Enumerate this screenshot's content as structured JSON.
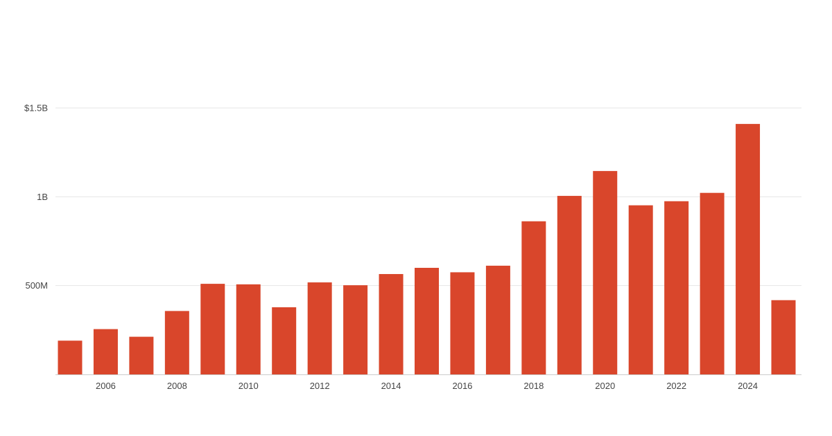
{
  "chart_data": {
    "type": "bar",
    "title": "",
    "xlabel": "",
    "ylabel": "",
    "x": [
      2005,
      2006,
      2007,
      2008,
      2009,
      2010,
      2011,
      2012,
      2013,
      2014,
      2015,
      2016,
      2017,
      2018,
      2019,
      2020,
      2021,
      2022,
      2023,
      2024,
      2025
    ],
    "values": [
      190000000,
      255000000,
      212000000,
      357000000,
      510000000,
      507000000,
      378000000,
      518000000,
      502000000,
      565000000,
      600000000,
      575000000,
      612000000,
      862000000,
      1005000000,
      1145000000,
      952000000,
      975000000,
      1022000000,
      1410000000,
      418000000
    ],
    "ylim": [
      0,
      1500000000
    ],
    "y_ticks": [
      {
        "value": 500000000,
        "label": "500M"
      },
      {
        "value": 1000000000,
        "label": "1B"
      },
      {
        "value": 1500000000,
        "label": "$1.5B"
      }
    ],
    "x_tick_labels": [
      "2006",
      "2008",
      "2010",
      "2012",
      "2014",
      "2016",
      "2018",
      "2020",
      "2022",
      "2024"
    ],
    "grid": true,
    "legend": "none",
    "bar_color": "#d9462b",
    "grid_color": "#e6e6e6",
    "axis_color": "#cccccc"
  }
}
